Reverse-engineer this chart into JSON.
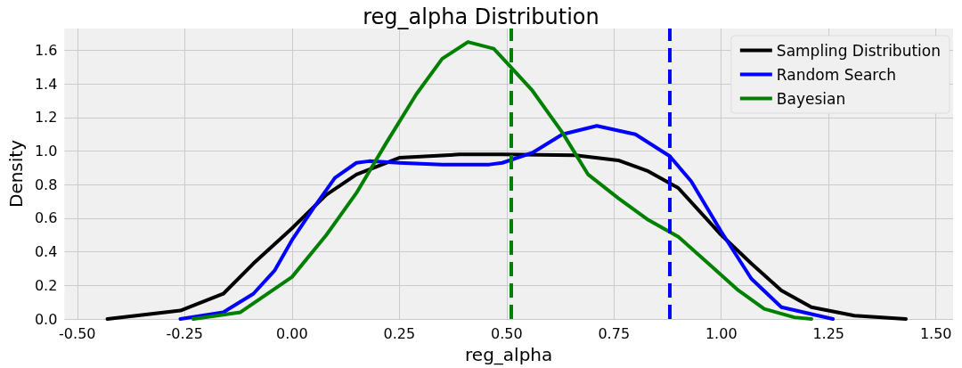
{
  "chart_data": {
    "type": "line",
    "title": "reg_alpha Distribution",
    "xlabel": "reg_alpha",
    "ylabel": "Density",
    "xlim": [
      -0.53,
      1.54
    ],
    "ylim": [
      0,
      1.73
    ],
    "xticks": [
      {
        "value": -0.5,
        "label": "-0.50"
      },
      {
        "value": -0.25,
        "label": "-0.25"
      },
      {
        "value": 0,
        "label": "0.00"
      },
      {
        "value": 0.25,
        "label": "0.25"
      },
      {
        "value": 0.5,
        "label": "0.50"
      },
      {
        "value": 0.75,
        "label": "0.75"
      },
      {
        "value": 1,
        "label": "1.00"
      },
      {
        "value": 1.25,
        "label": "1.25"
      },
      {
        "value": 1.5,
        "label": "1.50"
      }
    ],
    "yticks": [
      {
        "value": 0,
        "label": "0.0"
      },
      {
        "value": 0.2,
        "label": "0.2"
      },
      {
        "value": 0.4,
        "label": "0.4"
      },
      {
        "value": 0.6,
        "label": "0.6"
      },
      {
        "value": 0.8,
        "label": "0.8"
      },
      {
        "value": 1,
        "label": "1.0"
      },
      {
        "value": 1.2,
        "label": "1.2"
      },
      {
        "value": 1.4,
        "label": "1.4"
      },
      {
        "value": 1.6,
        "label": "1.6"
      }
    ],
    "grid": true,
    "legend": "top right",
    "marker": "none",
    "line_style": "solid",
    "series": [
      {
        "name": "Sampling Distribution",
        "color": "#000000",
        "x": [
          -0.43,
          -0.26,
          -0.16,
          -0.09,
          0,
          0.08,
          0.15,
          0.25,
          0.39,
          0.49,
          0.66,
          0.76,
          0.83,
          0.9,
          1,
          1.07,
          1.14,
          1.21,
          1.31,
          1.43
        ],
        "values": [
          0,
          0.05,
          0.15,
          0.33,
          0.54,
          0.74,
          0.86,
          0.96,
          0.98,
          0.98,
          0.975,
          0.945,
          0.88,
          0.78,
          0.5,
          0.33,
          0.17,
          0.07,
          0.02,
          0
        ]
      },
      {
        "name": "Random Search",
        "color": "#0000ff",
        "x": [
          -0.26,
          -0.16,
          -0.09,
          -0.04,
          0,
          0.05,
          0.1,
          0.15,
          0.18,
          0.25,
          0.35,
          0.46,
          0.49,
          0.56,
          0.63,
          0.71,
          0.8,
          0.88,
          0.93,
          1,
          1.07,
          1.14,
          1.26
        ],
        "values": [
          0,
          0.04,
          0.15,
          0.29,
          0.47,
          0.66,
          0.84,
          0.93,
          0.94,
          0.93,
          0.92,
          0.92,
          0.93,
          0.99,
          1.1,
          1.15,
          1.1,
          0.97,
          0.82,
          0.52,
          0.24,
          0.07,
          0
        ]
      },
      {
        "name": "Bayesian",
        "color": "#008000",
        "x": [
          -0.23,
          -0.12,
          0,
          0.08,
          0.15,
          0.22,
          0.29,
          0.35,
          0.41,
          0.47,
          0.51,
          0.56,
          0.63,
          0.69,
          0.76,
          0.83,
          0.9,
          0.97,
          1.04,
          1.1,
          1.17,
          1.21
        ],
        "values": [
          0,
          0.04,
          0.25,
          0.5,
          0.75,
          1.05,
          1.34,
          1.55,
          1.65,
          1.61,
          1.5,
          1.36,
          1.11,
          0.86,
          0.72,
          0.59,
          0.49,
          0.33,
          0.17,
          0.06,
          0.01,
          0
        ]
      }
    ],
    "ref_lines": [
      {
        "axis": "x",
        "value": 0.51,
        "color": "#008000",
        "line_style": "dashed"
      },
      {
        "axis": "x",
        "value": 0.88,
        "color": "#0000ff",
        "line_style": "dashed"
      }
    ]
  }
}
